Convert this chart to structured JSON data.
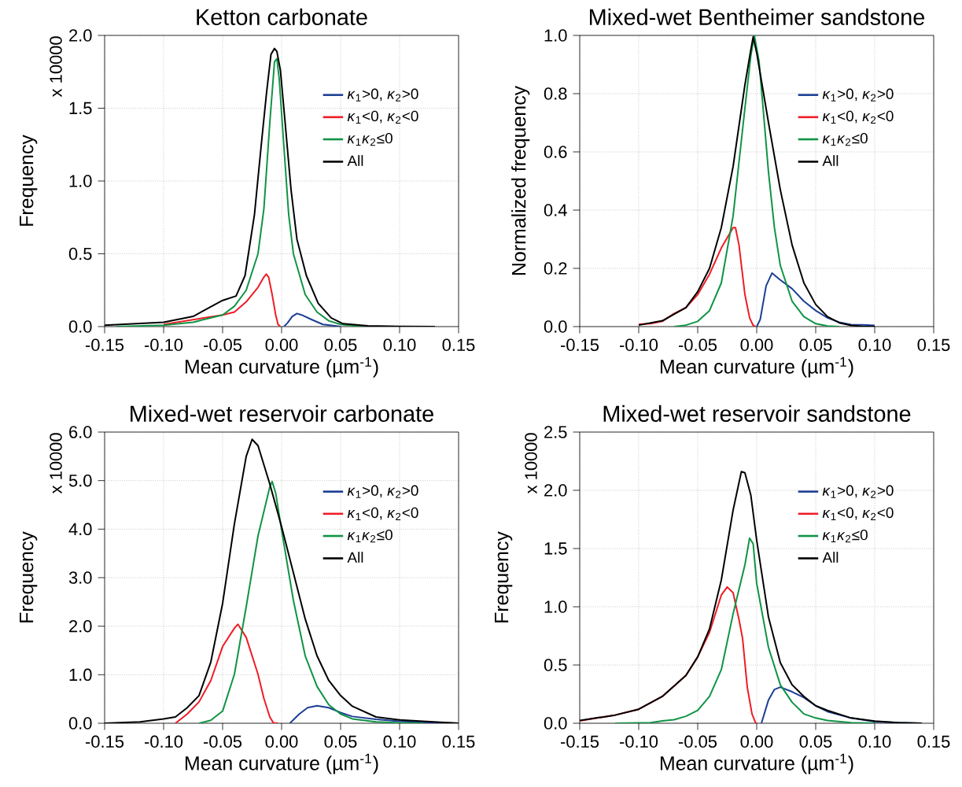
{
  "chart_data": [
    {
      "type": "line",
      "title": "Ketton carbonate",
      "xlabel": "Mean curvature (µm$^{-1}$)",
      "ylabel": "Frequency",
      "annotations": [
        "x 10000"
      ],
      "xlim": [
        -0.15,
        0.15
      ],
      "ylim": [
        0,
        2.0
      ],
      "xticks": [
        {
          "value": -0.15,
          "label": "-0.15"
        },
        {
          "value": -0.1,
          "label": "-0.10"
        },
        {
          "value": -0.05,
          "label": "-0.05"
        },
        {
          "value": 0,
          "label": "0.00"
        },
        {
          "value": 0.05,
          "label": "0.05"
        },
        {
          "value": 0.1,
          "label": "0.10"
        },
        {
          "value": 0.15,
          "label": "0.15"
        }
      ],
      "yticks": [
        {
          "value": 0,
          "label": "0.0"
        },
        0.5,
        {
          "value": 1,
          "label": "1.0"
        },
        1.5,
        {
          "value": 2,
          "label": "2.0"
        }
      ],
      "grid": true,
      "legend": "right",
      "series": [
        {
          "name": "*κ*$_{1}$>0, *κ*$_{2}$>0",
          "color": "#1c3f94",
          "x": [
            0.002,
            0.005,
            0.009,
            0.013,
            0.017,
            0.025,
            0.035,
            0.045,
            0.05
          ],
          "values": [
            0,
            0.025,
            0.07,
            0.09,
            0.08,
            0.05,
            0.015,
            0.005,
            0
          ]
        },
        {
          "name": "*κ*$_{1}$<0, *κ*$_{2}$<0",
          "color": "#ee1c25",
          "x": [
            -0.1,
            -0.05,
            -0.04,
            -0.03,
            -0.02,
            -0.015,
            -0.013,
            -0.011,
            -0.008,
            -0.005,
            -0.003,
            -0.001
          ],
          "values": [
            0.015,
            0.08,
            0.1,
            0.17,
            0.27,
            0.34,
            0.36,
            0.34,
            0.22,
            0.08,
            0.015,
            0
          ]
        },
        {
          "name": "*κ*$_{1}$*κ*$_{2}$≤0",
          "color": "#0f9445",
          "x": [
            -0.14,
            -0.1,
            -0.075,
            -0.05,
            -0.04,
            -0.03,
            -0.02,
            -0.015,
            -0.01,
            -0.006,
            -0.004,
            -0.002,
            0.002,
            0.006,
            0.01,
            0.02,
            0.03,
            0.04,
            0.05,
            0.07
          ],
          "values": [
            0,
            0.01,
            0.03,
            0.08,
            0.14,
            0.25,
            0.5,
            0.81,
            1.4,
            1.82,
            1.84,
            1.7,
            1.23,
            0.77,
            0.5,
            0.22,
            0.1,
            0.04,
            0.015,
            0
          ]
        },
        {
          "name": "All",
          "color": "#000000",
          "x": [
            -0.15,
            -0.1,
            -0.075,
            -0.05,
            -0.0386,
            -0.031,
            -0.023,
            -0.0166,
            -0.0127,
            -0.009,
            -0.006,
            -0.004,
            -0.001,
            0.003,
            0.008,
            0.013,
            0.021,
            0.031,
            0.042,
            0.052,
            0.073,
            0.1,
            0.13
          ],
          "values": [
            0.01,
            0.03,
            0.07,
            0.18,
            0.21,
            0.35,
            0.77,
            1.3,
            1.61,
            1.87,
            1.91,
            1.89,
            1.76,
            1.4,
            0.94,
            0.6,
            0.35,
            0.16,
            0.06,
            0.02,
            0.005,
            0.002,
            0
          ]
        }
      ]
    },
    {
      "type": "line",
      "title": "Mixed-wet Bentheimer sandstone",
      "xlabel": "Mean curvature (µm$^{-1}$)",
      "ylabel": "Normalized frequency",
      "xlim": [
        -0.15,
        0.15
      ],
      "ylim": [
        0,
        1.0
      ],
      "xticks": [
        {
          "value": -0.15,
          "label": "-0.15"
        },
        {
          "value": -0.1,
          "label": "-0.10"
        },
        {
          "value": -0.05,
          "label": "-0.05"
        },
        {
          "value": 0,
          "label": "0.00"
        },
        {
          "value": 0.05,
          "label": "0.05"
        },
        {
          "value": 0.1,
          "label": "0.10"
        },
        {
          "value": 0.15,
          "label": "0.15"
        }
      ],
      "yticks": [
        {
          "value": 0,
          "label": "0.0"
        },
        0.2,
        0.4,
        0.6,
        0.8,
        {
          "value": 1,
          "label": "1.0"
        }
      ],
      "grid": true,
      "legend": "right",
      "series": [
        {
          "name": "*κ*$_{1}$>0, *κ*$_{2}$>0",
          "color": "#1c3f94",
          "x": [
            0,
            0.003,
            0.008,
            0.013,
            0.02,
            0.03,
            0.04,
            0.05,
            0.06,
            0.07,
            0.08,
            0.09,
            0.1
          ],
          "values": [
            0,
            0.025,
            0.14,
            0.184,
            0.16,
            0.13,
            0.087,
            0.055,
            0.03,
            0.015,
            0.007,
            0.006,
            0.004
          ]
        },
        {
          "name": "*κ*$_{1}$<0, *κ*$_{2}$<0",
          "color": "#ee1c25",
          "x": [
            -0.1,
            -0.09,
            -0.08,
            -0.07,
            -0.06,
            -0.05,
            -0.04,
            -0.03,
            -0.02,
            -0.018,
            -0.015,
            -0.01,
            -0.006,
            -0.003,
            -0.001
          ],
          "values": [
            0.008,
            0.01,
            0.018,
            0.045,
            0.065,
            0.11,
            0.18,
            0.27,
            0.34,
            0.34,
            0.28,
            0.11,
            0.03,
            0.004,
            0
          ]
        },
        {
          "name": "*κ*$_{1}$*κ*$_{2}$≤0",
          "color": "#0f9445",
          "x": [
            -0.07,
            -0.06,
            -0.05,
            -0.04,
            -0.03,
            -0.02,
            -0.01,
            -0.005,
            -0.002,
            0.002,
            0.005,
            0.01,
            0.015,
            0.02,
            0.03,
            0.04,
            0.05,
            0.06,
            0.07
          ],
          "values": [
            0,
            0.005,
            0.018,
            0.055,
            0.15,
            0.38,
            0.75,
            0.93,
            1.0,
            0.91,
            0.77,
            0.53,
            0.34,
            0.21,
            0.087,
            0.034,
            0.01,
            0.002,
            0
          ]
        },
        {
          "name": "All",
          "color": "#000000",
          "x": [
            -0.1,
            -0.08,
            -0.06,
            -0.05,
            -0.04,
            -0.03,
            -0.02,
            -0.01,
            -0.005,
            -0.003,
            0,
            0.01,
            0.02,
            0.03,
            0.04,
            0.05,
            0.06,
            0.07,
            0.08,
            0.09,
            0.1
          ],
          "values": [
            0.005,
            0.02,
            0.065,
            0.12,
            0.2,
            0.34,
            0.55,
            0.83,
            0.95,
            0.995,
            0.94,
            0.7,
            0.47,
            0.28,
            0.15,
            0.076,
            0.034,
            0.013,
            0.004,
            0.001,
            0
          ]
        }
      ]
    },
    {
      "type": "line",
      "title": "Mixed-wet reservoir carbonate",
      "xlabel": "Mean curvature (µm$^{-1}$)",
      "ylabel": "Frequency",
      "annotations": [
        "x 10000"
      ],
      "xlim": [
        -0.15,
        0.15
      ],
      "ylim": [
        0,
        6.0
      ],
      "xticks": [
        {
          "value": -0.15,
          "label": "-0.15"
        },
        {
          "value": -0.1,
          "label": "-0.10"
        },
        {
          "value": -0.05,
          "label": "-0.05"
        },
        {
          "value": 0,
          "label": "0.00"
        },
        {
          "value": 0.05,
          "label": "0.05"
        },
        {
          "value": 0.1,
          "label": "0.10"
        },
        {
          "value": 0.15,
          "label": "0.15"
        }
      ],
      "yticks": [
        {
          "value": 0,
          "label": "0.0"
        },
        {
          "value": 1,
          "label": "1.0"
        },
        {
          "value": 2,
          "label": "2.0"
        },
        {
          "value": 3,
          "label": "3.0"
        },
        {
          "value": 4,
          "label": "4.0"
        },
        {
          "value": 5,
          "label": "5.0"
        },
        {
          "value": 6,
          "label": "6.0"
        }
      ],
      "grid": true,
      "legend": "right",
      "series": [
        {
          "name": "*κ*$_{1}$>0, *κ*$_{2}$>0",
          "color": "#1c3f94",
          "x": [
            0.007,
            0.015,
            0.022,
            0.03,
            0.04,
            0.05,
            0.06,
            0.08,
            0.1,
            0.12,
            0.15
          ],
          "values": [
            0,
            0.19,
            0.32,
            0.36,
            0.32,
            0.22,
            0.14,
            0.08,
            0.04,
            0.02,
            0
          ]
        },
        {
          "name": "*κ*$_{1}$<0, *κ*$_{2}$<0",
          "color": "#ee1c25",
          "x": [
            -0.09,
            -0.08,
            -0.07,
            -0.06,
            -0.05,
            -0.04,
            -0.037,
            -0.03,
            -0.02,
            -0.015,
            -0.01,
            -0.007,
            -0.003
          ],
          "values": [
            0,
            0.19,
            0.44,
            0.88,
            1.58,
            1.96,
            2.04,
            1.77,
            1.01,
            0.51,
            0.13,
            0.01,
            0
          ]
        },
        {
          "name": "*κ*$_{1}$*κ*$_{2}$≤0",
          "color": "#0f9445",
          "x": [
            -0.07,
            -0.06,
            -0.05,
            -0.04,
            -0.03,
            -0.02,
            -0.01,
            -0.008,
            -0.005,
            0,
            0.01,
            0.02,
            0.03,
            0.04,
            0.05,
            0.06,
            0.08,
            0.1,
            0.12
          ],
          "values": [
            0,
            0.06,
            0.25,
            1.01,
            2.4,
            3.86,
            4.87,
            4.98,
            4.74,
            3.98,
            2.53,
            1.39,
            0.76,
            0.38,
            0.19,
            0.09,
            0.03,
            0.01,
            0
          ]
        },
        {
          "name": "All",
          "color": "#000000",
          "x": [
            -0.15,
            -0.12,
            -0.1,
            -0.09,
            -0.08,
            -0.07,
            -0.06,
            -0.05,
            -0.04,
            -0.03,
            -0.025,
            -0.02,
            -0.01,
            0,
            0.01,
            0.02,
            0.03,
            0.04,
            0.05,
            0.06,
            0.08,
            0.1,
            0.12,
            0.15
          ],
          "values": [
            0,
            0.03,
            0.09,
            0.13,
            0.32,
            0.57,
            1.26,
            2.47,
            4.11,
            5.5,
            5.85,
            5.72,
            4.93,
            4.05,
            3.1,
            2.15,
            1.39,
            0.88,
            0.57,
            0.35,
            0.13,
            0.07,
            0.04,
            0
          ]
        }
      ]
    },
    {
      "type": "line",
      "title": "Mixed-wet reservoir sandstone",
      "xlabel": "Mean curvature (µm$^{-1}$)",
      "ylabel": "Frequency",
      "annotations": [
        "x 10000"
      ],
      "xlim": [
        -0.15,
        0.15
      ],
      "ylim": [
        0,
        2.5
      ],
      "xticks": [
        {
          "value": -0.15,
          "label": "-0.15"
        },
        {
          "value": -0.1,
          "label": "-0.10"
        },
        {
          "value": -0.05,
          "label": "-0.05"
        },
        {
          "value": 0,
          "label": "0.00"
        },
        {
          "value": 0.05,
          "label": "0.05"
        },
        {
          "value": 0.1,
          "label": "0.10"
        },
        {
          "value": 0.15,
          "label": "0.15"
        }
      ],
      "yticks": [
        {
          "value": 0,
          "label": "0.0"
        },
        0.5,
        {
          "value": 1,
          "label": "1.0"
        },
        1.5,
        {
          "value": 2,
          "label": "2.0"
        },
        2.5
      ],
      "grid": true,
      "legend": "right",
      "series": [
        {
          "name": "*κ*$_{1}$>0, *κ*$_{2}$>0",
          "color": "#1c3f94",
          "x": [
            0.004,
            0.01,
            0.015,
            0.02,
            0.03,
            0.04,
            0.05,
            0.06,
            0.08,
            0.1,
            0.12,
            0.138
          ],
          "values": [
            0,
            0.2,
            0.29,
            0.31,
            0.27,
            0.22,
            0.15,
            0.1,
            0.045,
            0.013,
            0.005,
            0
          ]
        },
        {
          "name": "*κ*$_{1}$<0, *κ*$_{2}$<0",
          "color": "#ee1c25",
          "x": [
            -0.15,
            -0.12,
            -0.1,
            -0.08,
            -0.06,
            -0.05,
            -0.04,
            -0.03,
            -0.025,
            -0.02,
            -0.015,
            -0.012,
            -0.008,
            -0.004,
            -0.001,
            0
          ],
          "values": [
            0.02,
            0.07,
            0.12,
            0.23,
            0.41,
            0.57,
            0.78,
            1.1,
            1.17,
            1.12,
            0.89,
            0.73,
            0.31,
            0.08,
            0.005,
            0
          ]
        },
        {
          "name": "*κ*$_{1}$*κ*$_{2}$≤0",
          "color": "#0f9445",
          "x": [
            -0.12,
            -0.09,
            -0.08,
            -0.07,
            -0.06,
            -0.05,
            -0.04,
            -0.03,
            -0.02,
            -0.01,
            -0.006,
            -0.003,
            0,
            0.01,
            0.02,
            0.03,
            0.04,
            0.05,
            0.06,
            0.08,
            0.1
          ],
          "values": [
            0,
            0.005,
            0.02,
            0.03,
            0.06,
            0.11,
            0.23,
            0.46,
            0.94,
            1.36,
            1.59,
            1.54,
            1.2,
            0.65,
            0.33,
            0.18,
            0.08,
            0.045,
            0.024,
            0.005,
            0
          ]
        },
        {
          "name": "All",
          "color": "#000000",
          "x": [
            -0.15,
            -0.12,
            -0.1,
            -0.08,
            -0.06,
            -0.05,
            -0.04,
            -0.03,
            -0.02,
            -0.013,
            -0.01,
            -0.005,
            0,
            0.01,
            0.02,
            0.03,
            0.04,
            0.05,
            0.06,
            0.08,
            0.1,
            0.12,
            0.14
          ],
          "values": [
            0.024,
            0.07,
            0.12,
            0.23,
            0.41,
            0.57,
            0.81,
            1.23,
            1.83,
            2.16,
            2.15,
            1.96,
            1.57,
            0.91,
            0.52,
            0.33,
            0.23,
            0.15,
            0.11,
            0.045,
            0.018,
            0.005,
            0
          ]
        }
      ]
    }
  ]
}
